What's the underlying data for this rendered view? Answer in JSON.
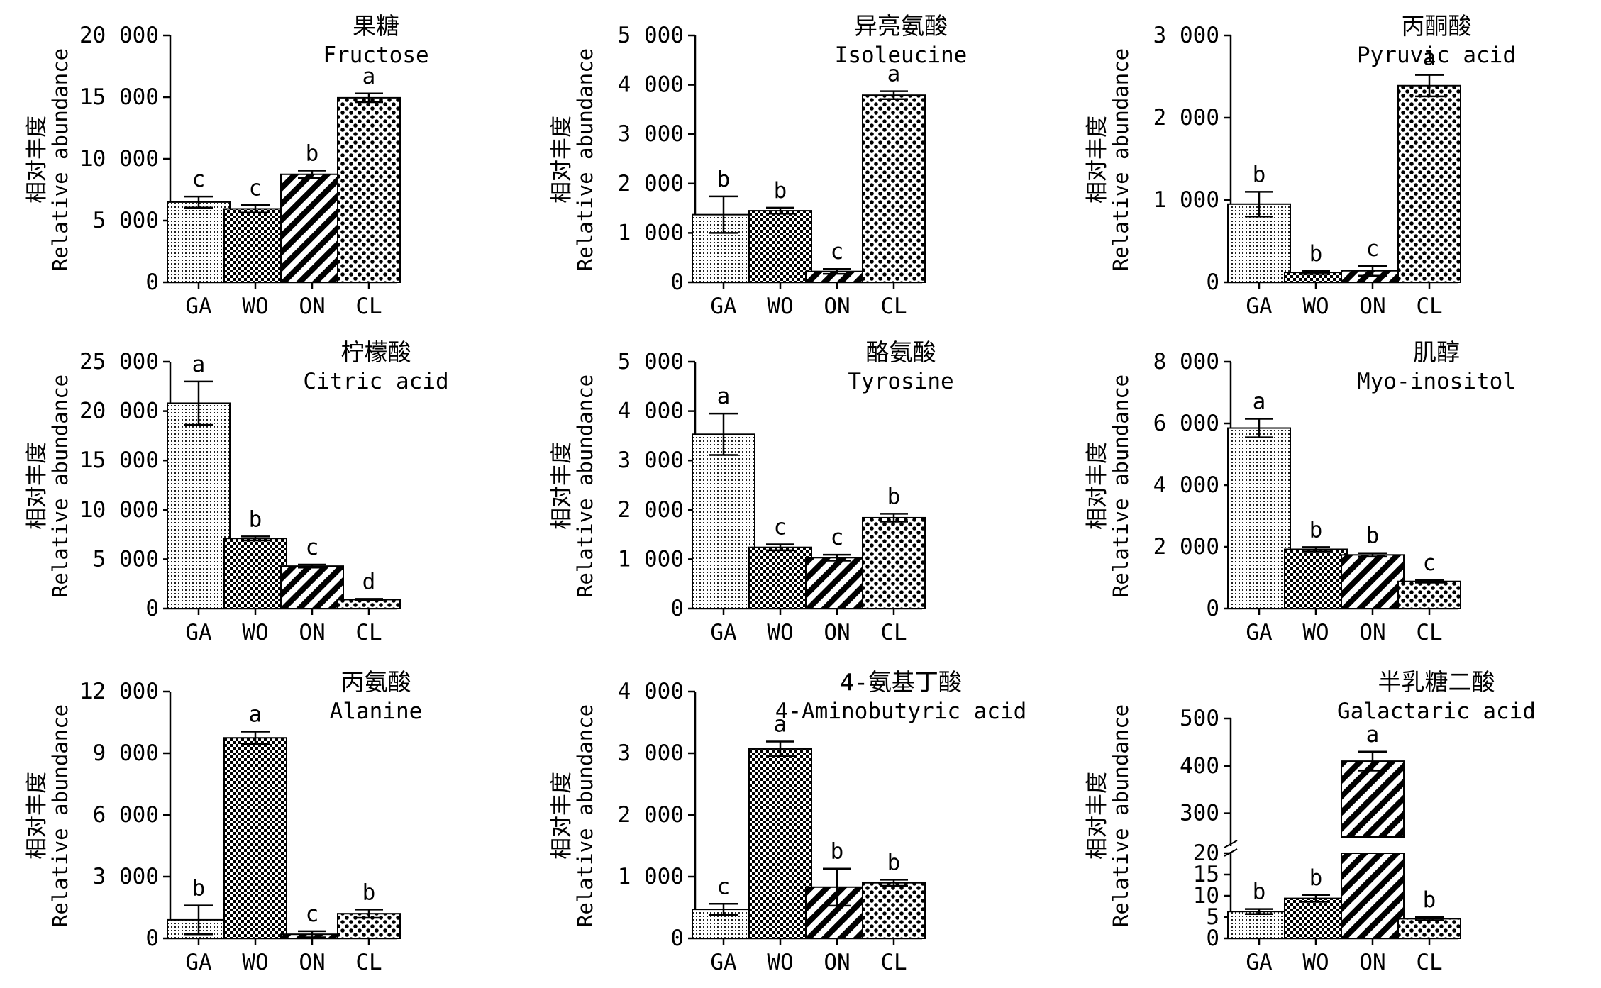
{
  "figure": {
    "ylabel_cn": "相对丰度",
    "ylabel_en": "Relative abundance",
    "categories": [
      "GA",
      "WO",
      "ON",
      "CL"
    ],
    "patterns": {
      "GA": "fine-dot",
      "WO": "check",
      "ON": "diagonal-stripe",
      "CL": "large-dot"
    }
  },
  "chart_data": [
    {
      "type": "bar",
      "title_cn": "果糖",
      "title_en": "Fructose",
      "ylabel": "相对丰度 Relative abundance",
      "categories": [
        "GA",
        "WO",
        "ON",
        "CL"
      ],
      "values": [
        6500,
        5950,
        8750,
        14950
      ],
      "errors": [
        450,
        300,
        300,
        350
      ],
      "letters": [
        "c",
        "c",
        "b",
        "a"
      ],
      "ylim": [
        0,
        20000
      ],
      "yticks": [
        0,
        5000,
        10000,
        15000,
        20000
      ],
      "ytick_labels": [
        "0",
        "5 000",
        "10 000",
        "15 000",
        "20 000"
      ]
    },
    {
      "type": "bar",
      "title_cn": "异亮氨酸",
      "title_en": "Isoleucine",
      "ylabel": "相对丰度 Relative abundance",
      "categories": [
        "GA",
        "WO",
        "ON",
        "CL"
      ],
      "values": [
        1370,
        1450,
        220,
        3790
      ],
      "errors": [
        370,
        60,
        50,
        80
      ],
      "letters": [
        "b",
        "b",
        "c",
        "a"
      ],
      "ylim": [
        0,
        5000
      ],
      "yticks": [
        0,
        1000,
        2000,
        3000,
        4000,
        5000
      ],
      "ytick_labels": [
        "0",
        "1 000",
        "2 000",
        "3 000",
        "4 000",
        "5 000"
      ]
    },
    {
      "type": "bar",
      "title_cn": "丙酮酸",
      "title_en": "Pyruvic acid",
      "ylabel": "相对丰度 Relative abundance",
      "categories": [
        "GA",
        "WO",
        "ON",
        "CL"
      ],
      "values": [
        950,
        120,
        140,
        2390
      ],
      "errors": [
        150,
        20,
        60,
        130
      ],
      "letters": [
        "b",
        "b",
        "c",
        "a"
      ],
      "ylim": [
        0,
        3000
      ],
      "yticks": [
        0,
        1000,
        2000,
        3000
      ],
      "ytick_labels": [
        "0",
        "1 000",
        "2 000",
        "3 000"
      ]
    },
    {
      "type": "bar",
      "title_cn": "柠檬酸",
      "title_en": "Citric acid",
      "ylabel": "相对丰度 Relative abundance",
      "categories": [
        "GA",
        "WO",
        "ON",
        "CL"
      ],
      "values": [
        20800,
        7100,
        4300,
        900
      ],
      "errors": [
        2200,
        200,
        150,
        80
      ],
      "letters": [
        "a",
        "b",
        "c",
        "d"
      ],
      "ylim": [
        0,
        25000
      ],
      "yticks": [
        0,
        5000,
        10000,
        15000,
        20000,
        25000
      ],
      "ytick_labels": [
        "0",
        "5 000",
        "10 000",
        "15 000",
        "20 000",
        "25 000"
      ]
    },
    {
      "type": "bar",
      "title_cn": "酪氨酸",
      "title_en": "Tyrosine",
      "ylabel": "相对丰度 Relative abundance",
      "categories": [
        "GA",
        "WO",
        "ON",
        "CL"
      ],
      "values": [
        3530,
        1240,
        1030,
        1840
      ],
      "errors": [
        420,
        60,
        60,
        80
      ],
      "letters": [
        "a",
        "c",
        "c",
        "b"
      ],
      "ylim": [
        0,
        5000
      ],
      "yticks": [
        0,
        1000,
        2000,
        3000,
        4000,
        5000
      ],
      "ytick_labels": [
        "0",
        "1 000",
        "2 000",
        "3 000",
        "4 000",
        "5 000"
      ]
    },
    {
      "type": "bar",
      "title_cn": "肌醇",
      "title_en": "Myo-inositol",
      "ylabel": "相对丰度 Relative abundance",
      "categories": [
        "GA",
        "WO",
        "ON",
        "CL"
      ],
      "values": [
        5850,
        1920,
        1740,
        880
      ],
      "errors": [
        300,
        70,
        60,
        40
      ],
      "letters": [
        "a",
        "b",
        "b",
        "c"
      ],
      "ylim": [
        0,
        8000
      ],
      "yticks": [
        0,
        2000,
        4000,
        6000,
        8000
      ],
      "ytick_labels": [
        "0",
        "2 000",
        "4 000",
        "6 000",
        "8 000"
      ]
    },
    {
      "type": "bar",
      "title_cn": "丙氨酸",
      "title_en": "Alanine",
      "ylabel": "相对丰度 Relative abundance",
      "categories": [
        "GA",
        "WO",
        "ON",
        "CL"
      ],
      "values": [
        900,
        9750,
        200,
        1200
      ],
      "errors": [
        700,
        300,
        150,
        200
      ],
      "letters": [
        "b",
        "a",
        "c",
        "b"
      ],
      "ylim": [
        0,
        12000
      ],
      "yticks": [
        0,
        3000,
        6000,
        9000,
        12000
      ],
      "ytick_labels": [
        "0",
        "3 000",
        "6 000",
        "9 000",
        "12 000"
      ]
    },
    {
      "type": "bar",
      "title_cn": "4-氨基丁酸",
      "title_en": "4-Aminobutyric acid",
      "ylabel": "相对丰度 Relative abundance",
      "categories": [
        "GA",
        "WO",
        "ON",
        "CL"
      ],
      "values": [
        470,
        3070,
        830,
        900
      ],
      "errors": [
        90,
        120,
        300,
        50
      ],
      "letters": [
        "c",
        "a",
        "b",
        "b"
      ],
      "ylim": [
        0,
        4000
      ],
      "yticks": [
        0,
        1000,
        2000,
        3000,
        4000
      ],
      "ytick_labels": [
        "0",
        "1 000",
        "2 000",
        "3 000",
        "4 000"
      ]
    },
    {
      "type": "bar",
      "title_cn": "半乳糖二酸",
      "title_en": "Galactaric acid",
      "ylabel": "相对丰度 Relative abundance",
      "categories": [
        "GA",
        "WO",
        "ON",
        "CL"
      ],
      "values": [
        6.3,
        9.4,
        410,
        4.6
      ],
      "errors": [
        0.6,
        0.8,
        20,
        0.4
      ],
      "letters": [
        "b",
        "b",
        "a",
        "b"
      ],
      "broken_axis": true,
      "ylim_lower": [
        0,
        20
      ],
      "yticks_lower": [
        0,
        5,
        10,
        15,
        20
      ],
      "ylim_upper": [
        250,
        500
      ],
      "yticks_upper": [
        300,
        400,
        500
      ],
      "ytick_labels": [
        "0",
        "5",
        "10",
        "15",
        "20",
        "300",
        "400",
        "500"
      ]
    }
  ]
}
